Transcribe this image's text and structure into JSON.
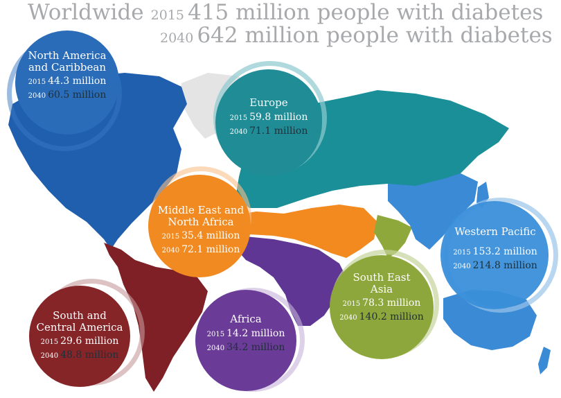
{
  "header": {
    "title_word": "Worldwide",
    "year_2015": "2015",
    "text_2015": "415 million people with diabetes",
    "year_2040": "2040",
    "text_2040": "642 million people with diabetes"
  },
  "regions": [
    {
      "key": "nac",
      "name_line1": "North America",
      "name_line2": "and Caribbean",
      "y1": "2015",
      "v1": "44.3 million",
      "y2": "2040",
      "v2": "60.5 million",
      "color": "#2a6cb8"
    },
    {
      "key": "eur",
      "name_line1": "Europe",
      "name_line2": "",
      "y1": "2015",
      "v1": "59.8 million",
      "y2": "2040",
      "v2": "71.1 million",
      "color": "#1f8c96"
    },
    {
      "key": "mena",
      "name_line1": "Middle East and",
      "name_line2": "North Africa",
      "y1": "2015",
      "v1": "35.4 million",
      "y2": "2040",
      "v2": "72.1 million",
      "color": "#f18a21"
    },
    {
      "key": "wp",
      "name_line1": "Western Pacific",
      "name_line2": "",
      "y1": "2015",
      "v1": "153.2 million",
      "y2": "2040",
      "v2": "214.8 million",
      "color": "#3a8fd9"
    },
    {
      "key": "sea",
      "name_line1": "South East",
      "name_line2": "Asia",
      "y1": "2015",
      "v1": "78.3 million",
      "y2": "2040",
      "v2": "140.2 million",
      "color": "#8ea73c"
    },
    {
      "key": "sca",
      "name_line1": "South and",
      "name_line2": "Central America",
      "y1": "2015",
      "v1": "29.6 million",
      "y2": "2040",
      "v2": "48.8 million",
      "color": "#852528"
    },
    {
      "key": "afr",
      "name_line1": "Africa",
      "name_line2": "",
      "y1": "2015",
      "v1": "14.2 million",
      "y2": "2040",
      "v2": "34.2 million",
      "color": "#6b3c97"
    }
  ],
  "map_colors": {
    "north_america": "#1f5fad",
    "greenland": "#e4e4e4",
    "south_america": "#7e2025",
    "europe_asia": "#1a8f98",
    "mena": "#f28a20",
    "africa": "#5f3693",
    "south_asia": "#8fa83c",
    "west_pacific": "#3a8ad6"
  }
}
